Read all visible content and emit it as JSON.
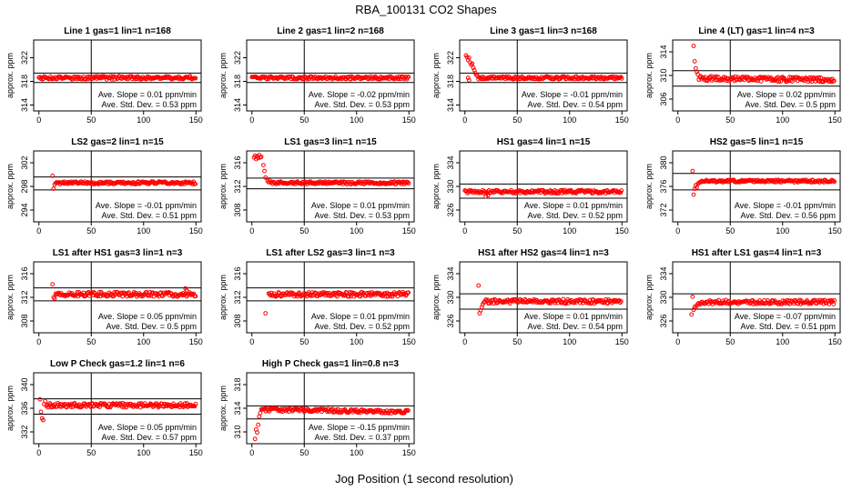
{
  "title": "RBA_100131  CO2 Shapes",
  "xlabel": "Jog Position (1 second resolution)",
  "ylabel": "approx. ppm",
  "slope_label": "Ave. Slope =",
  "slope_unit": "ppm/min",
  "std_label": "Ave. Std. Dev. =",
  "std_unit": "ppm",
  "colors": {
    "points": "#ff0000",
    "axes": "#000000",
    "background": "#ffffff"
  },
  "chart_data": [
    {
      "type": "scatter",
      "title": "Line 1 gas=1 lin=1 n=168",
      "xlim": [
        -5,
        155
      ],
      "ylim": [
        313,
        325
      ],
      "xticks": [
        0,
        50,
        100,
        150
      ],
      "yticks": [
        314,
        318,
        322
      ],
      "vline": 50,
      "hlines": [
        317.8,
        319.4
      ],
      "base": 318.6,
      "start": 0,
      "slope": 0,
      "noise": 0.28,
      "seed": 1,
      "spikes": [],
      "slope_value": "0.01",
      "std_value": "0.53"
    },
    {
      "type": "scatter",
      "title": "Line 2 gas=1 lin=2 n=168",
      "xlim": [
        -5,
        155
      ],
      "ylim": [
        313,
        325
      ],
      "xticks": [
        0,
        50,
        100,
        150
      ],
      "yticks": [
        314,
        318,
        322
      ],
      "vline": 50,
      "hlines": [
        317.8,
        319.4
      ],
      "base": 318.6,
      "start": 0,
      "slope": 0,
      "noise": 0.25,
      "seed": 2,
      "spikes": [],
      "slope_value": "-0.02",
      "std_value": "0.53"
    },
    {
      "type": "scatter",
      "title": "Line 3 gas=1 lin=3 n=168",
      "xlim": [
        -5,
        155
      ],
      "ylim": [
        313,
        325
      ],
      "xticks": [
        0,
        50,
        100,
        150
      ],
      "yticks": [
        314,
        318,
        322
      ],
      "vline": 50,
      "hlines": [
        317.8,
        319.4
      ],
      "base": 318.6,
      "start": 13,
      "slope": 0,
      "noise": 0.25,
      "seed": 3,
      "spikes": [
        [
          1,
          322.4
        ],
        [
          2,
          322.1
        ],
        [
          3,
          321.6
        ],
        [
          4,
          322.0
        ],
        [
          5,
          321.2
        ],
        [
          6,
          320.8
        ],
        [
          7,
          321.0
        ],
        [
          8,
          320.3
        ],
        [
          9,
          319.9
        ],
        [
          10,
          319.4
        ],
        [
          11,
          319.1
        ],
        [
          3,
          318.6
        ],
        [
          4,
          318.2
        ],
        [
          12,
          318.9
        ]
      ],
      "slope_value": "-0.01",
      "std_value": "0.54"
    },
    {
      "type": "scatter",
      "title": "Line 4 (LT) gas=1 lin=4 n=3",
      "xlim": [
        -5,
        155
      ],
      "ylim": [
        304,
        316
      ],
      "xticks": [
        0,
        50,
        100,
        150
      ],
      "yticks": [
        306,
        310,
        314
      ],
      "vline": 50,
      "hlines": [
        308.2,
        310.8
      ],
      "base": 309.4,
      "start": 20,
      "slope": -0.002,
      "noise": 0.4,
      "seed": 4,
      "spikes": [
        [
          15,
          315.0
        ],
        [
          16,
          312.4
        ],
        [
          17,
          311.2
        ],
        [
          18,
          310.6
        ],
        [
          19,
          310.2
        ]
      ],
      "slope_value": "0.02",
      "std_value": "0.5"
    },
    {
      "type": "scatter",
      "title": "LS2 gas=2 lin=1 n=15",
      "xlim": [
        -5,
        155
      ],
      "ylim": [
        292,
        304
      ],
      "xticks": [
        0,
        50,
        100,
        150
      ],
      "yticks": [
        294,
        298,
        302
      ],
      "vline": 50,
      "hlines": [
        297.4,
        299.6
      ],
      "base": 298.6,
      "start": 16,
      "slope": 0,
      "noise": 0.22,
      "seed": 5,
      "spikes": [
        [
          13,
          299.8
        ],
        [
          14,
          297.6
        ],
        [
          15,
          298.3
        ]
      ],
      "slope_value": "-0.01",
      "std_value": "0.51"
    },
    {
      "type": "scatter",
      "title": "LS1 gas=3 lin=1 n=15",
      "xlim": [
        -5,
        155
      ],
      "ylim": [
        306,
        318
      ],
      "xticks": [
        0,
        50,
        100,
        150
      ],
      "yticks": [
        308,
        312,
        316
      ],
      "vline": 50,
      "hlines": [
        311.6,
        313.4
      ],
      "base": 312.6,
      "start": 18,
      "slope": 0,
      "noise": 0.22,
      "seed": 6,
      "spikes": [
        [
          2,
          316.9
        ],
        [
          3,
          317.2
        ],
        [
          4,
          316.6
        ],
        [
          5,
          317.1
        ],
        [
          6,
          316.8
        ],
        [
          7,
          317.3
        ],
        [
          8,
          316.9
        ],
        [
          9,
          317.0
        ],
        [
          11,
          315.6
        ],
        [
          12,
          314.6
        ],
        [
          13,
          313.5
        ],
        [
          15,
          312.9
        ],
        [
          16,
          312.7
        ],
        [
          17,
          313.0
        ]
      ],
      "slope_value": "0.01",
      "std_value": "0.53"
    },
    {
      "type": "scatter",
      "title": "HS1 gas=4 lin=1 n=15",
      "xlim": [
        -5,
        155
      ],
      "ylim": [
        324,
        336
      ],
      "xticks": [
        0,
        50,
        100,
        150
      ],
      "yticks": [
        326,
        330,
        334
      ],
      "vline": 50,
      "hlines": [
        328.0,
        330.4
      ],
      "base": 329.1,
      "start": 0,
      "slope": 0,
      "noise": 0.28,
      "seed": 7,
      "spikes": [
        [
          20,
          328.3
        ],
        [
          22,
          328.5
        ]
      ],
      "slope_value": "0.01",
      "std_value": "0.52"
    },
    {
      "type": "scatter",
      "title": "HS2 gas=5 lin=1 n=15",
      "xlim": [
        -5,
        155
      ],
      "ylim": [
        370,
        382
      ],
      "xticks": [
        0,
        50,
        100,
        150
      ],
      "yticks": [
        372,
        376,
        380
      ],
      "vline": 50,
      "hlines": [
        375.4,
        378.2
      ],
      "base": 376.9,
      "start": 22,
      "slope": 0,
      "noise": 0.22,
      "seed": 8,
      "spikes": [
        [
          14,
          378.6
        ],
        [
          15,
          374.6
        ],
        [
          16,
          375.6
        ],
        [
          17,
          376.2
        ],
        [
          18,
          375.8
        ],
        [
          19,
          376.4
        ],
        [
          20,
          376.6
        ],
        [
          21,
          376.7
        ]
      ],
      "slope_value": "-0.01",
      "std_value": "0.56"
    },
    {
      "type": "scatter",
      "title": "LS1 after HS1 gas=3 lin=1 n=3",
      "xlim": [
        -5,
        155
      ],
      "ylim": [
        306,
        318
      ],
      "xticks": [
        0,
        50,
        100,
        150
      ],
      "yticks": [
        308,
        312,
        316
      ],
      "vline": 50,
      "hlines": [
        311.4,
        313.6
      ],
      "base": 312.5,
      "start": 17,
      "slope": 0,
      "noise": 0.38,
      "seed": 9,
      "spikes": [
        [
          13,
          314.2
        ],
        [
          14,
          312.0
        ],
        [
          15,
          311.8
        ],
        [
          16,
          312.6
        ],
        [
          140,
          313.5
        ],
        [
          141,
          313.2
        ]
      ],
      "slope_value": "0.05",
      "std_value": "0.5"
    },
    {
      "type": "scatter",
      "title": "LS1 after LS2 gas=3 lin=1 n=3",
      "xlim": [
        -5,
        155
      ],
      "ylim": [
        306,
        318
      ],
      "xticks": [
        0,
        50,
        100,
        150
      ],
      "yticks": [
        308,
        312,
        316
      ],
      "vline": 50,
      "hlines": [
        311.4,
        313.6
      ],
      "base": 312.5,
      "start": 16,
      "slope": 0,
      "noise": 0.38,
      "seed": 10,
      "spikes": [
        [
          13,
          309.3
        ]
      ],
      "slope_value": "0.01",
      "std_value": "0.52"
    },
    {
      "type": "scatter",
      "title": "HS1 after HS2 gas=4 lin=1 n=3",
      "xlim": [
        -5,
        155
      ],
      "ylim": [
        324,
        336
      ],
      "xticks": [
        0,
        50,
        100,
        150
      ],
      "yticks": [
        326,
        330,
        334
      ],
      "vline": 50,
      "hlines": [
        328.0,
        330.6
      ],
      "base": 329.3,
      "start": 20,
      "slope": 0,
      "noise": 0.38,
      "seed": 11,
      "spikes": [
        [
          13,
          332.0
        ],
        [
          14,
          327.3
        ],
        [
          15,
          327.8
        ],
        [
          16,
          328.3
        ],
        [
          17,
          328.8
        ],
        [
          18,
          329.1
        ],
        [
          19,
          329.3
        ]
      ],
      "slope_value": "0.01",
      "std_value": "0.54"
    },
    {
      "type": "scatter",
      "title": "HS1 after LS1 gas=4 lin=1 n=3",
      "xlim": [
        -5,
        155
      ],
      "ylim": [
        324,
        336
      ],
      "xticks": [
        0,
        50,
        100,
        150
      ],
      "yticks": [
        326,
        330,
        334
      ],
      "vline": 50,
      "hlines": [
        328.0,
        330.6
      ],
      "base": 329.2,
      "start": 22,
      "slope": 0,
      "noise": 0.36,
      "seed": 12,
      "spikes": [
        [
          13,
          327.1
        ],
        [
          14,
          330.1
        ],
        [
          15,
          327.9
        ],
        [
          16,
          328.4
        ],
        [
          17,
          328.2
        ],
        [
          18,
          328.6
        ],
        [
          19,
          328.9
        ],
        [
          20,
          329.0
        ],
        [
          21,
          328.8
        ]
      ],
      "slope_value": "-0.07",
      "std_value": "0.51"
    },
    {
      "type": "scatter",
      "title": "Low P Check gas=1.2 lin=1 n=6",
      "xlim": [
        -5,
        155
      ],
      "ylim": [
        330,
        342
      ],
      "xticks": [
        0,
        50,
        100,
        150
      ],
      "yticks": [
        332,
        336,
        340
      ],
      "vline": 50,
      "hlines": [
        335.0,
        337.6
      ],
      "base": 336.5,
      "start": 7,
      "slope": 0,
      "noise": 0.36,
      "seed": 13,
      "spikes": [
        [
          1,
          337.5
        ],
        [
          2,
          335.4
        ],
        [
          3,
          334.3
        ],
        [
          4,
          334.0
        ],
        [
          5,
          336.7
        ],
        [
          6,
          337.2
        ]
      ],
      "slope_value": "0.05",
      "std_value": "0.57"
    },
    {
      "type": "scatter",
      "title": "High P Check gas=1 lin=0.8 n=3",
      "xlim": [
        -5,
        155
      ],
      "ylim": [
        308,
        320
      ],
      "xticks": [
        0,
        50,
        100,
        150
      ],
      "yticks": [
        310,
        314,
        318
      ],
      "vline": 50,
      "hlines": [
        312.2,
        314.4
      ],
      "base": 313.6,
      "start": 9,
      "slope": -0.003,
      "noise": 0.3,
      "seed": 14,
      "spikes": [
        [
          3,
          308.8
        ],
        [
          4,
          310.4
        ],
        [
          5,
          309.9
        ],
        [
          6,
          311.2
        ],
        [
          7,
          312.6
        ],
        [
          8,
          313.2
        ]
      ],
      "slope_value": "-0.15",
      "std_value": "0.37"
    }
  ]
}
